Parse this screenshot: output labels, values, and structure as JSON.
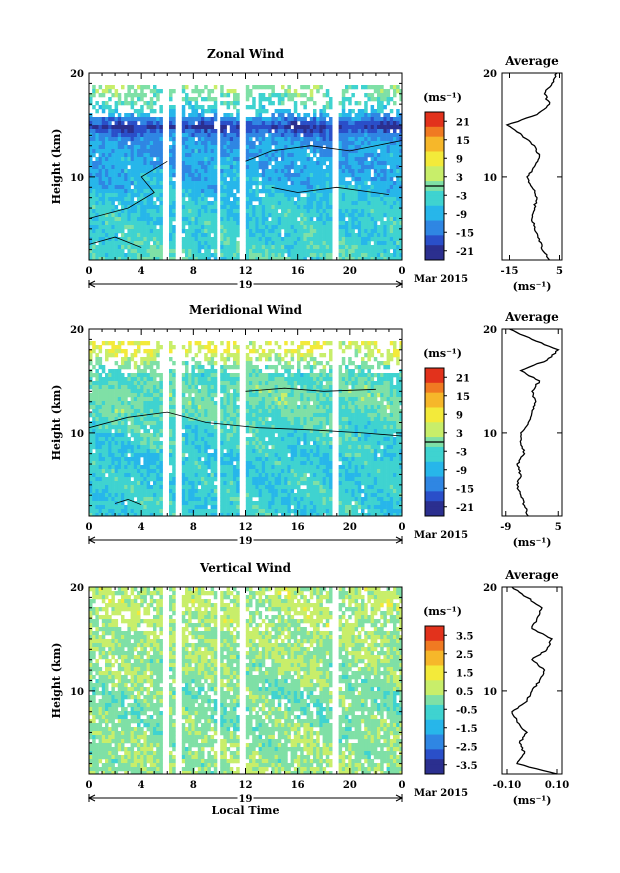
{
  "chart_data": [
    {
      "type": "heatmap",
      "title": "Zonal Wind",
      "ylabel": "Height (km)",
      "xlabel": "",
      "date_label": "19",
      "date_suffix": "Mar 2015",
      "x_ticks": [
        "0",
        "4",
        "8",
        "12",
        "16",
        "20",
        "0"
      ],
      "y_ticks": [
        "20",
        "10"
      ],
      "xlim": [
        0,
        24
      ],
      "ylim": [
        2,
        20
      ],
      "colorbar": {
        "unit": "(ms⁻¹)",
        "ticks": [
          "21",
          "15",
          "9",
          "3",
          "-3",
          "-9",
          "-15",
          "-21"
        ],
        "range": [
          -24,
          24
        ],
        "zero_contour_value": 0
      },
      "data_gaps_hours": [
        [
          5.6,
          6.1
        ],
        [
          6.6,
          7.0
        ],
        [
          9.6,
          10.0
        ],
        [
          11.4,
          11.8
        ],
        [
          18.6,
          19.0
        ]
      ],
      "profile": {
        "title": "Average",
        "xlabel": "(ms⁻¹)",
        "x_ticks": [
          "-15",
          "5"
        ],
        "xlim": [
          -18,
          6
        ],
        "y_ticks": [
          "20",
          "10"
        ],
        "heights": [
          2,
          3,
          4,
          5,
          6,
          7,
          8,
          9,
          10,
          11,
          12,
          13,
          14,
          15,
          16,
          17,
          18,
          19,
          20
        ],
        "values": [
          1,
          -2,
          -3,
          -5,
          -6,
          -5,
          -4,
          -6,
          -8,
          -5,
          -3,
          -5,
          -10,
          -16,
          -4,
          1,
          -1,
          2,
          4
        ]
      },
      "field_rows": [
        {
          "z": 2.5,
          "v": -3
        },
        {
          "z": 5,
          "v": -5
        },
        {
          "z": 7.5,
          "v": -6
        },
        {
          "z": 10,
          "v": -9
        },
        {
          "z": 12,
          "v": -10
        },
        {
          "z": 14,
          "v": -12
        },
        {
          "z": 15,
          "v": -20
        },
        {
          "z": 16.5,
          "v": -6
        },
        {
          "z": 18.5,
          "v": 0
        }
      ]
    },
    {
      "type": "heatmap",
      "title": "Meridional Wind",
      "ylabel": "Height (km)",
      "xlabel": "",
      "date_label": "19",
      "date_suffix": "Mar 2015",
      "x_ticks": [
        "0",
        "4",
        "8",
        "12",
        "16",
        "20",
        "0"
      ],
      "y_ticks": [
        "20",
        "10"
      ],
      "xlim": [
        0,
        24
      ],
      "ylim": [
        2,
        20
      ],
      "colorbar": {
        "unit": "(ms⁻¹)",
        "ticks": [
          "21",
          "15",
          "9",
          "3",
          "-3",
          "-9",
          "-15",
          "-21"
        ],
        "range": [
          -24,
          24
        ],
        "zero_contour_value": 0
      },
      "data_gaps_hours": [
        [
          5.6,
          6.1
        ],
        [
          6.6,
          7.0
        ],
        [
          9.6,
          10.0
        ],
        [
          11.4,
          11.8
        ],
        [
          18.6,
          19.0
        ]
      ],
      "profile": {
        "title": "Average",
        "xlabel": "(ms⁻¹)",
        "x_ticks": [
          "-9",
          "5"
        ],
        "xlim": [
          -10,
          6
        ],
        "y_ticks": [
          "20",
          "10"
        ],
        "heights": [
          2,
          3,
          4,
          5,
          6,
          7,
          8,
          9,
          10,
          11,
          12,
          13,
          14,
          15,
          16,
          17,
          18,
          19,
          20
        ],
        "values": [
          -3,
          -4,
          -5,
          -6,
          -5,
          -6,
          -4,
          -5,
          -5,
          -3,
          -2,
          -1,
          -2,
          0,
          -5,
          2,
          5,
          -2,
          -8
        ]
      },
      "field_rows": [
        {
          "z": 2.5,
          "v": -5
        },
        {
          "z": 5,
          "v": -5
        },
        {
          "z": 7.5,
          "v": -6
        },
        {
          "z": 10,
          "v": -4
        },
        {
          "z": 12,
          "v": -2
        },
        {
          "z": 14,
          "v": -1
        },
        {
          "z": 16,
          "v": -3
        },
        {
          "z": 18,
          "v": 6
        }
      ]
    },
    {
      "type": "heatmap",
      "title": "Vertical Wind",
      "ylabel": "Height (km)",
      "xlabel": "Local Time",
      "date_label": "19",
      "date_suffix": "Mar 2015",
      "x_ticks": [
        "0",
        "4",
        "8",
        "12",
        "16",
        "20",
        "0"
      ],
      "y_ticks": [
        "20",
        "10"
      ],
      "xlim": [
        0,
        24
      ],
      "ylim": [
        2,
        20
      ],
      "colorbar": {
        "unit": "(ms⁻¹)",
        "ticks": [
          "3.5",
          "2.5",
          "1.5",
          "0.5",
          "-0.5",
          "-1.5",
          "-2.5",
          "-3.5"
        ],
        "range": [
          -4,
          4
        ]
      },
      "data_gaps_hours": [
        [
          5.6,
          6.1
        ],
        [
          6.6,
          7.0
        ],
        [
          9.6,
          10.0
        ],
        [
          11.4,
          11.8
        ],
        [
          18.6,
          19.0
        ]
      ],
      "profile": {
        "title": "Average",
        "xlabel": "(ms⁻¹)",
        "x_ticks": [
          "-0.10",
          "0.10"
        ],
        "xlim": [
          -0.12,
          0.12
        ],
        "y_ticks": [
          "20",
          "10"
        ],
        "heights": [
          2,
          3,
          4,
          5,
          6,
          7,
          8,
          9,
          10,
          11,
          12,
          13,
          14,
          15,
          16,
          17,
          18,
          19,
          20
        ],
        "values": [
          0.1,
          -0.06,
          -0.03,
          -0.05,
          -0.02,
          -0.06,
          -0.08,
          -0.02,
          0.0,
          0.03,
          0.05,
          0.0,
          0.06,
          0.08,
          0.0,
          0.02,
          0.04,
          -0.02,
          -0.08
        ]
      },
      "field_rows": [
        {
          "z": 3,
          "v": 0.3
        },
        {
          "z": 6,
          "v": 0.1
        },
        {
          "z": 9,
          "v": -0.1
        },
        {
          "z": 12,
          "v": 0.2
        },
        {
          "z": 15,
          "v": 0.4
        },
        {
          "z": 18,
          "v": 0.5
        }
      ]
    }
  ],
  "colors": {
    "scale": [
      "#2b2f8f",
      "#2a4fc9",
      "#2f86e3",
      "#27b6ea",
      "#3fd3d0",
      "#7fe0a6",
      "#c8ee6a",
      "#f3ea3a",
      "#f6b72a",
      "#f07a22",
      "#e2321c"
    ]
  }
}
